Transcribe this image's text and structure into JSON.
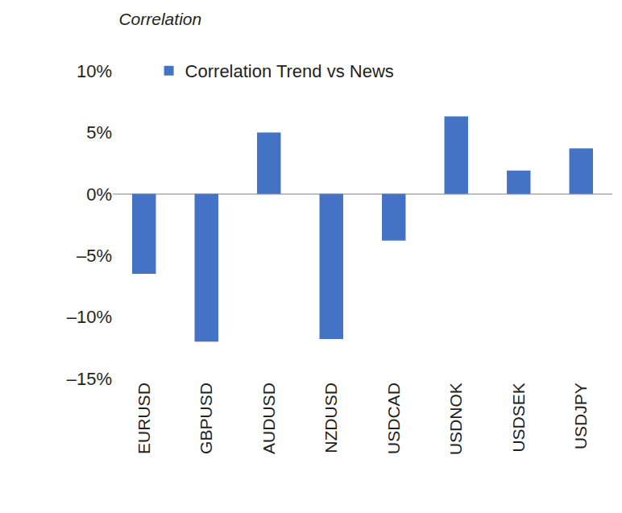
{
  "chart_data": {
    "type": "bar",
    "ylabel": "Correlation",
    "categories": [
      "EURUSD",
      "GBPUSD",
      "AUDUSD",
      "NZDUSD",
      "USDCAD",
      "USDNOK",
      "USDSEK",
      "USDJPY"
    ],
    "series": [
      {
        "name": "Correlation Trend vs News",
        "color": "#4472c4",
        "values": [
          -6.5,
          -12,
          5,
          -11.8,
          -3.8,
          6.3,
          1.9,
          3.7
        ]
      }
    ],
    "ylim": [
      -15,
      10
    ],
    "yticks": [
      {
        "value": -15,
        "label": "–15%"
      },
      {
        "value": -10,
        "label": "–10%"
      },
      {
        "value": -5,
        "label": "–5%"
      },
      {
        "value": 0,
        "label": "0%"
      },
      {
        "value": 5,
        "label": "5%"
      },
      {
        "value": 10,
        "label": "10%"
      }
    ],
    "grid": false,
    "legend": "top"
  }
}
